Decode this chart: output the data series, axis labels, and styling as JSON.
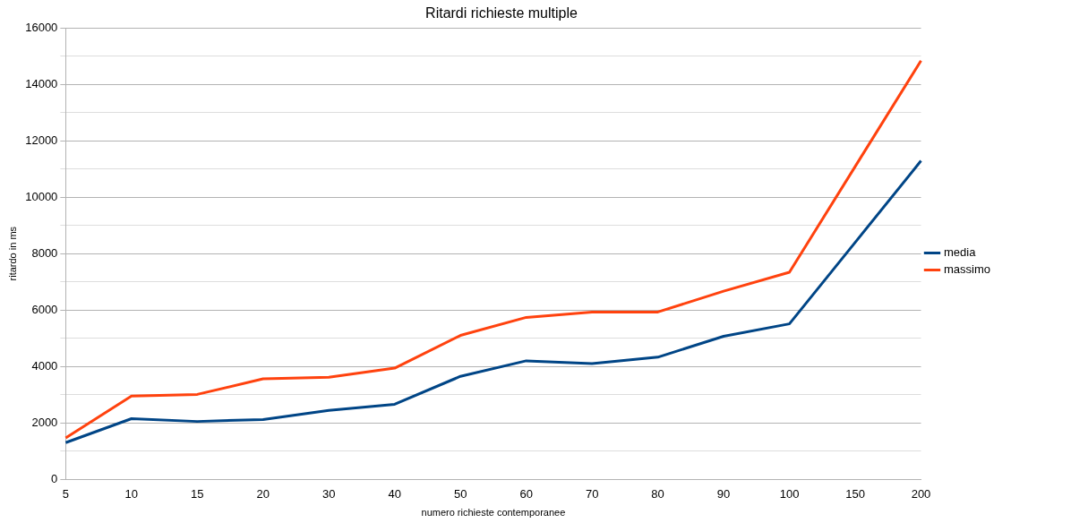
{
  "chart_data": {
    "type": "line",
    "title": "Ritardi richieste multiple",
    "xlabel": "numero richieste contemporanee",
    "ylabel": "ritardo in ms",
    "categories": [
      "5",
      "10",
      "15",
      "20",
      "30",
      "40",
      "50",
      "60",
      "70",
      "80",
      "90",
      "100",
      "150",
      "200"
    ],
    "series": [
      {
        "name": "media",
        "color": "#004586",
        "values": [
          1300,
          2150,
          2050,
          2120,
          2440,
          2660,
          3650,
          4200,
          4100,
          4330,
          5070,
          5510,
          8400,
          11290
        ]
      },
      {
        "name": "massimo",
        "color": "#ff420e",
        "values": [
          1470,
          2950,
          3010,
          3560,
          3620,
          3940,
          5100,
          5740,
          5930,
          5930,
          6670,
          7340,
          11090,
          14840
        ]
      }
    ],
    "ylim": [
      0,
      16000
    ],
    "yticks": [
      0,
      {
        "value": 1000,
        "label": null
      },
      2000,
      {
        "value": 3000,
        "label": null
      },
      4000,
      {
        "value": 5000,
        "label": null
      },
      6000,
      {
        "value": 7000,
        "label": null
      },
      8000,
      {
        "value": 9000,
        "label": null
      },
      10000,
      {
        "value": 11000,
        "label": null
      },
      12000,
      {
        "value": 13000,
        "label": null
      },
      14000,
      {
        "value": 15000,
        "label": null
      },
      16000
    ],
    "grid": "y",
    "legend": "right",
    "marker": "none",
    "line_style": "solid"
  }
}
